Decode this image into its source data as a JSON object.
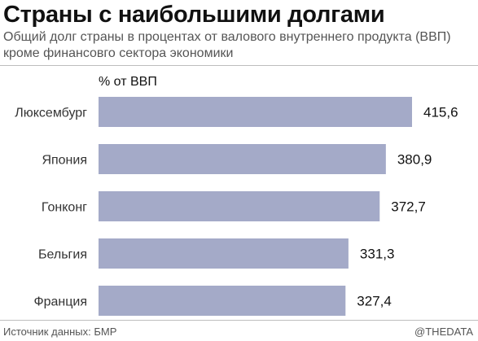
{
  "title": "Страны с наибольшими долгами",
  "subtitle": "Общий долг страны в процентах от валового внутреннего продукта (ВВП) кроме финансовго сектора экономики",
  "source": "Источник данных: БМР",
  "credit": "@THEDATA",
  "colors": {
    "bar": "#a4aac8"
  },
  "chart_data": {
    "type": "bar",
    "orientation": "horizontal",
    "unit_label": "% от ВВП",
    "categories": [
      "Люксембург",
      "Япония",
      "Гонконг",
      "Бельгия",
      "Франция"
    ],
    "values": [
      415.6,
      380.9,
      372.7,
      331.3,
      327.4
    ],
    "value_labels": [
      "415,6",
      "380,9",
      "372,7",
      "331,3",
      "327,4"
    ],
    "xlim": [
      0,
      415.6
    ],
    "grid": false
  }
}
